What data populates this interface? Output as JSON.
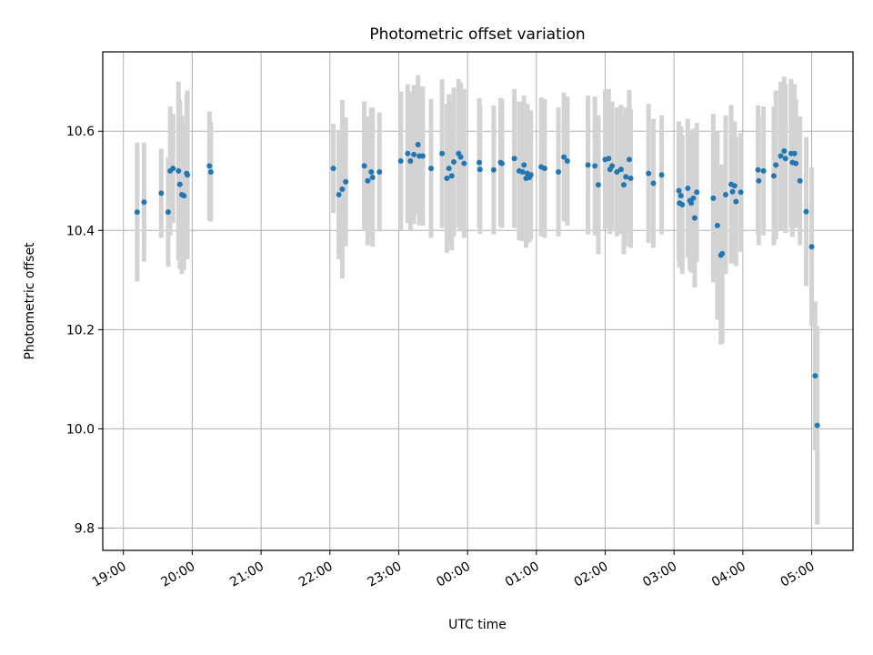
{
  "chart_data": {
    "type": "scatter",
    "title": "Photometric offset variation",
    "xlabel": "UTC time",
    "ylabel": "Photometric offset",
    "x_tick_labels": [
      "19:00",
      "20:00",
      "21:00",
      "22:00",
      "23:00",
      "00:00",
      "01:00",
      "02:00",
      "03:00",
      "04:00",
      "05:00"
    ],
    "y_ticks": [
      9.8,
      10.0,
      10.2,
      10.4,
      10.6
    ],
    "y_tick_labels": [
      "9.8",
      "10.0",
      "10.2",
      "10.4",
      "10.6"
    ],
    "xlim_hours": [
      18.7,
      29.6
    ],
    "ylim": [
      9.755,
      10.76
    ],
    "grid": true,
    "colors": {
      "points": "#1f77b4",
      "error_bars": "#d3d3d3",
      "grid": "#b0b0b0"
    },
    "series": [
      {
        "x": [
          19.2,
          19.3,
          19.55,
          19.65,
          19.68,
          19.72,
          19.8,
          19.82,
          19.85,
          19.88,
          19.92,
          19.93,
          20.25,
          20.27,
          22.05,
          22.13,
          22.18,
          22.23,
          22.5,
          22.55,
          22.6,
          22.62,
          22.72,
          23.03,
          23.13,
          23.17,
          23.22,
          23.28,
          23.3,
          23.35,
          23.47,
          23.63,
          23.7,
          23.73,
          23.77,
          23.8,
          23.87,
          23.9,
          23.95,
          24.17,
          24.18,
          24.38,
          24.48,
          24.5,
          24.68,
          24.75,
          24.8,
          24.82,
          24.85,
          24.87,
          24.9,
          24.92,
          25.07,
          25.12,
          25.32,
          25.4,
          25.45,
          25.75,
          25.85,
          25.9,
          26.0,
          26.05,
          26.07,
          26.1,
          26.17,
          26.23,
          26.27,
          26.3,
          26.35,
          26.37,
          26.63,
          26.7,
          26.82,
          27.07,
          27.08,
          27.1,
          27.12,
          27.2,
          27.23,
          27.25,
          27.28,
          27.3,
          27.33,
          27.57,
          27.63,
          27.68,
          27.7,
          27.75,
          27.83,
          27.85,
          27.88,
          27.9,
          27.97,
          28.22,
          28.23,
          28.3,
          28.45,
          28.48,
          28.55,
          28.6,
          28.62,
          28.7,
          28.72,
          28.75,
          28.77,
          28.83,
          28.92,
          29.0,
          29.05,
          29.08
        ],
        "y": [
          10.437,
          10.457,
          10.475,
          10.437,
          10.52,
          10.525,
          10.52,
          10.493,
          10.472,
          10.47,
          10.515,
          10.512,
          10.53,
          10.518,
          10.525,
          10.472,
          10.483,
          10.498,
          10.53,
          10.5,
          10.518,
          10.507,
          10.518,
          10.54,
          10.555,
          10.54,
          10.553,
          10.573,
          10.55,
          10.55,
          10.525,
          10.555,
          10.505,
          10.525,
          10.51,
          10.538,
          10.555,
          10.548,
          10.535,
          10.537,
          10.523,
          10.522,
          10.537,
          10.535,
          10.545,
          10.52,
          10.518,
          10.532,
          10.505,
          10.515,
          10.507,
          10.512,
          10.528,
          10.525,
          10.518,
          10.548,
          10.54,
          10.532,
          10.53,
          10.492,
          10.543,
          10.545,
          10.523,
          10.53,
          10.518,
          10.523,
          10.492,
          10.508,
          10.543,
          10.505,
          10.515,
          10.495,
          10.512,
          10.48,
          10.455,
          10.47,
          10.452,
          10.485,
          10.46,
          10.455,
          10.465,
          10.425,
          10.477,
          10.465,
          10.41,
          10.35,
          10.353,
          10.472,
          10.493,
          10.478,
          10.49,
          10.458,
          10.477,
          10.522,
          10.5,
          10.52,
          10.51,
          10.532,
          10.55,
          10.56,
          10.545,
          10.555,
          10.537,
          10.555,
          10.535,
          10.5,
          10.438,
          10.367,
          10.107,
          10.007
        ],
        "err_half": [
          0.14,
          0.12,
          0.09,
          0.11,
          0.13,
          0.11,
          0.18,
          0.17,
          0.16,
          0.15,
          0.16,
          0.17,
          0.11,
          0.1,
          0.09,
          0.13,
          0.18,
          0.13,
          0.13,
          0.13,
          0.13,
          0.14,
          0.12,
          0.14,
          0.14,
          0.14,
          0.14,
          0.14,
          0.14,
          0.14,
          0.14,
          0.15,
          0.15,
          0.15,
          0.15,
          0.15,
          0.15,
          0.15,
          0.15,
          0.13,
          0.13,
          0.13,
          0.13,
          0.13,
          0.14,
          0.14,
          0.14,
          0.14,
          0.14,
          0.14,
          0.13,
          0.13,
          0.14,
          0.14,
          0.13,
          0.13,
          0.13,
          0.14,
          0.14,
          0.14,
          0.14,
          0.14,
          0.13,
          0.13,
          0.13,
          0.13,
          0.14,
          0.14,
          0.14,
          0.14,
          0.14,
          0.13,
          0.12,
          0.14,
          0.13,
          0.14,
          0.14,
          0.14,
          0.14,
          0.14,
          0.14,
          0.14,
          0.14,
          0.17,
          0.19,
          0.18,
          0.18,
          0.16,
          0.16,
          0.14,
          0.13,
          0.13,
          0.12,
          0.13,
          0.13,
          0.13,
          0.14,
          0.15,
          0.15,
          0.15,
          0.15,
          0.15,
          0.15,
          0.14,
          0.13,
          0.13,
          0.15,
          0.16,
          0.15,
          0.2
        ]
      }
    ]
  }
}
